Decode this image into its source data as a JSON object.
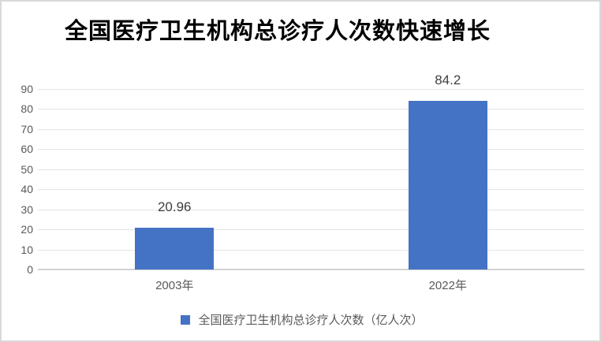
{
  "chart_data": {
    "type": "bar",
    "title": "全国医疗卫生机构总诊疗人次数快速增长",
    "categories": [
      "2003年",
      "2022年"
    ],
    "values": [
      20.96,
      84.2
    ],
    "value_labels": [
      "20.96",
      "84.2"
    ],
    "series_name": "全国医疗卫生机构总诊疗人次数（亿人次）",
    "xlabel": "",
    "ylabel": "",
    "ylim": [
      0,
      90
    ],
    "ytick_step": 10,
    "yticks": [
      0,
      10,
      20,
      30,
      40,
      50,
      60,
      70,
      80,
      90
    ],
    "grid": true,
    "legend_position": "bottom",
    "bar_color": "#4472C4"
  },
  "legend": {
    "marker_color": "#4472C4"
  },
  "colors": {
    "bar": "#4472C4",
    "gridline": "#e4e4e4",
    "axis_line": "#d2d2d2",
    "tick_text": "#595959",
    "title_text": "#000000",
    "frame_border": "#d9d9d9"
  }
}
